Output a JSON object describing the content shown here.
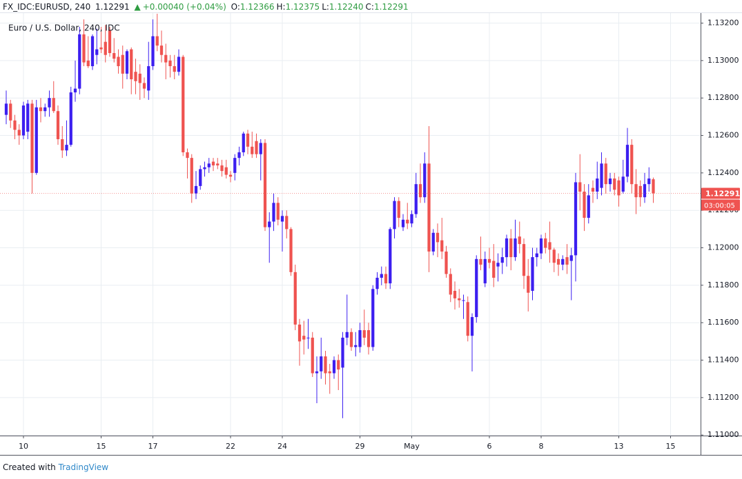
{
  "header": {
    "symbol": "FX_IDC:EURUSD, 240",
    "last": "1.12291",
    "change": "+0.00040 (+0.04%)",
    "fields": [
      {
        "label": "O:",
        "value": "1.12366"
      },
      {
        "label": "H:",
        "value": "1.12375"
      },
      {
        "label": "L:",
        "value": "1.12240"
      },
      {
        "label": "C:",
        "value": "1.12291"
      }
    ],
    "countdown": "03:00:05"
  },
  "footer": {
    "created": "Created with",
    "brand": "TradingView"
  },
  "chart_data": {
    "type": "candlestick",
    "title": "Euro / U.S. Dollar, 240, IDC",
    "up_color": "#3c1ff0",
    "down_color": "#ef5350",
    "grid": true,
    "xlim": [
      -1.44,
      160.96
    ],
    "xticks": [
      {
        "value": 4,
        "label": "10"
      },
      {
        "value": 22,
        "label": "15"
      },
      {
        "value": 34,
        "label": "17"
      },
      {
        "value": 52,
        "label": "22"
      },
      {
        "value": 64,
        "label": "24"
      },
      {
        "value": 82,
        "label": "29"
      },
      {
        "value": 94,
        "label": "May"
      },
      {
        "value": 112,
        "label": "6"
      },
      {
        "value": 124,
        "label": "8"
      },
      {
        "value": 142,
        "label": "13"
      },
      {
        "value": 154,
        "label": "15"
      }
    ],
    "ylim": [
      1.10997,
      1.13213
    ],
    "yticks": [
      {
        "value": 1.132,
        "label": "1.13200"
      },
      {
        "value": 1.13,
        "label": "1.13000"
      },
      {
        "value": 1.128,
        "label": "1.12800"
      },
      {
        "value": 1.126,
        "label": "1.12600"
      },
      {
        "value": 1.124,
        "label": "1.12400"
      },
      {
        "value": 1.122,
        "label": "1.12200"
      },
      {
        "value": 1.12,
        "label": "1.12000"
      },
      {
        "value": 1.118,
        "label": "1.11800"
      },
      {
        "value": 1.116,
        "label": "1.11600"
      },
      {
        "value": 1.114,
        "label": "1.11400"
      },
      {
        "value": 1.112,
        "label": "1.11200"
      },
      {
        "value": 1.11,
        "label": "1.11000"
      }
    ],
    "open": [
      1.1271,
      1.1277,
      1.1268,
      1.1263,
      1.126,
      1.1262,
      1.1277,
      1.124,
      1.1275,
      1.1273,
      1.1275,
      1.128,
      1.1273,
      1.1258,
      1.1252,
      1.1255,
      1.1283,
      1.1285,
      1.1314,
      1.13,
      1.1297,
      1.1303,
      1.1307,
      1.131,
      1.1316,
      1.1304,
      1.1302,
      1.1303,
      1.1293,
      1.1306,
      1.1294,
      1.1293,
      1.1288,
      1.1284,
      1.1297,
      1.1313,
      1.1308,
      1.1303,
      1.13,
      1.1297,
      1.1294,
      1.1302,
      1.1251,
      1.1248,
      1.1229,
      1.1233,
      1.1242,
      1.1243,
      1.1246,
      1.1245,
      1.1244,
      1.1243,
      1.1239,
      1.124,
      1.1248,
      1.1251,
      1.1261,
      1.1254,
      1.1257,
      1.125,
      1.1256,
      1.1211,
      1.1214,
      1.1224,
      1.1214,
      1.1217,
      1.121,
      1.1187,
      1.1159,
      1.1153,
      1.1152,
      1.1152,
      1.1133,
      1.1134,
      1.1142,
      1.1134,
      1.1133,
      1.114,
      1.1136,
      1.1152,
      1.1155,
      1.1147,
      1.1147,
      1.1156,
      1.1156,
      1.1147,
      1.1178,
      1.1184,
      1.1186,
      1.1181,
      1.121,
      1.1225,
      1.1211,
      1.1215,
      1.1213,
      1.1218,
      1.1234,
      1.1227,
      1.1245,
      1.1198,
      1.1208,
      1.1204,
      1.1198,
      1.1186,
      1.1177,
      1.1173,
      1.1172,
      1.1171,
      1.1153,
      1.1163,
      1.1194,
      1.1181,
      1.1194,
      1.1193,
      1.119,
      1.1192,
      1.1195,
      1.1205,
      1.1195,
      1.1206,
      1.1202,
      1.1185,
      1.1177,
      1.1195,
      1.1197,
      1.1205,
      1.1203,
      1.1199,
      1.1194,
      1.1191,
      1.1195,
      1.1193,
      1.1196,
      1.1235,
      1.123,
      1.1216,
      1.1232,
      1.123,
      1.1232,
      1.1245,
      1.1234,
      1.1237,
      1.1236,
      1.123,
      1.1238,
      1.1255,
      1.1234,
      1.1233,
      1.1227,
      1.1234,
      1.12366
    ],
    "high": [
      1.1284,
      1.1279,
      1.1271,
      1.1266,
      1.1278,
      1.1279,
      1.1279,
      1.1279,
      1.128,
      1.1277,
      1.1284,
      1.1289,
      1.1276,
      1.1265,
      1.1268,
      1.1286,
      1.13,
      1.1318,
      1.1322,
      1.1313,
      1.1314,
      1.1317,
      1.1318,
      1.1319,
      1.1318,
      1.1312,
      1.1306,
      1.1308,
      1.1306,
      1.1307,
      1.1301,
      1.1298,
      1.1291,
      1.131,
      1.1322,
      1.1325,
      1.1316,
      1.1309,
      1.1303,
      1.1303,
      1.1306,
      1.1303,
      1.1253,
      1.125,
      1.1241,
      1.1244,
      1.1246,
      1.1248,
      1.1248,
      1.1248,
      1.1247,
      1.1247,
      1.1241,
      1.125,
      1.1254,
      1.1262,
      1.1263,
      1.1262,
      1.1261,
      1.1258,
      1.1258,
      1.1219,
      1.1229,
      1.1227,
      1.122,
      1.122,
      1.1211,
      1.1191,
      1.1162,
      1.1161,
      1.1162,
      1.1155,
      1.1142,
      1.1152,
      1.1145,
      1.1138,
      1.1142,
      1.1143,
      1.1155,
      1.1175,
      1.1157,
      1.1155,
      1.116,
      1.1167,
      1.116,
      1.118,
      1.1187,
      1.119,
      1.119,
      1.1211,
      1.1227,
      1.1227,
      1.1218,
      1.1224,
      1.122,
      1.124,
      1.1245,
      1.1251,
      1.1265,
      1.121,
      1.1213,
      1.1216,
      1.1201,
      1.1189,
      1.1182,
      1.1178,
      1.1175,
      1.1174,
      1.1165,
      1.1196,
      1.1206,
      1.1198,
      1.12,
      1.1202,
      1.1197,
      1.12,
      1.1207,
      1.121,
      1.1215,
      1.1214,
      1.1205,
      1.1194,
      1.12,
      1.12,
      1.1207,
      1.1208,
      1.1214,
      1.12,
      1.1197,
      1.1196,
      1.1202,
      1.12,
      1.124,
      1.125,
      1.1234,
      1.1234,
      1.1236,
      1.1246,
      1.1251,
      1.1248,
      1.124,
      1.124,
      1.1238,
      1.1247,
      1.1264,
      1.1258,
      1.1242,
      1.1236,
      1.124,
      1.1243,
      1.12375
    ],
    "low": [
      1.1266,
      1.1264,
      1.1258,
      1.1255,
      1.1258,
      1.1258,
      1.1229,
      1.1239,
      1.1267,
      1.127,
      1.127,
      1.1272,
      1.1255,
      1.1248,
      1.1249,
      1.1254,
      1.1278,
      1.1282,
      1.1297,
      1.1296,
      1.1295,
      1.1298,
      1.1304,
      1.1299,
      1.1302,
      1.1299,
      1.1293,
      1.1285,
      1.129,
      1.1282,
      1.1282,
      1.1279,
      1.128,
      1.1279,
      1.1295,
      1.1305,
      1.1299,
      1.129,
      1.1291,
      1.129,
      1.1292,
      1.1249,
      1.1237,
      1.1224,
      1.1226,
      1.1231,
      1.1238,
      1.124,
      1.1241,
      1.1242,
      1.1238,
      1.1237,
      1.1235,
      1.1236,
      1.1244,
      1.1249,
      1.125,
      1.1248,
      1.1248,
      1.1236,
      1.1209,
      1.1192,
      1.1209,
      1.1212,
      1.1198,
      1.1205,
      1.1185,
      1.1156,
      1.1137,
      1.1143,
      1.1146,
      1.1131,
      1.1117,
      1.113,
      1.1127,
      1.1122,
      1.113,
      1.1124,
      1.1109,
      1.1148,
      1.1145,
      1.1142,
      1.1144,
      1.1148,
      1.1143,
      1.1145,
      1.1175,
      1.118,
      1.1178,
      1.1178,
      1.1205,
      1.1211,
      1.1209,
      1.121,
      1.1211,
      1.1216,
      1.1224,
      1.1224,
      1.1187,
      1.1196,
      1.1195,
      1.1194,
      1.1184,
      1.1171,
      1.1167,
      1.1168,
      1.1162,
      1.115,
      1.1134,
      1.116,
      1.1188,
      1.1179,
      1.1189,
      1.1179,
      1.1182,
      1.1186,
      1.119,
      1.1188,
      1.1193,
      1.1197,
      1.1178,
      1.1166,
      1.1172,
      1.119,
      1.1194,
      1.1197,
      1.1192,
      1.1187,
      1.1185,
      1.1188,
      1.1186,
      1.1172,
      1.1182,
      1.122,
      1.1209,
      1.1213,
      1.1224,
      1.1226,
      1.1228,
      1.1229,
      1.123,
      1.1228,
      1.1222,
      1.1229,
      1.1235,
      1.1229,
      1.1218,
      1.1222,
      1.1224,
      1.123,
      1.1224
    ],
    "close": [
      1.1277,
      1.1268,
      1.1263,
      1.126,
      1.1276,
      1.1277,
      1.124,
      1.1275,
      1.1273,
      1.1275,
      1.128,
      1.1273,
      1.1258,
      1.1252,
      1.1255,
      1.1283,
      1.1285,
      1.1314,
      1.1299,
      1.1297,
      1.1313,
      1.1306,
      1.1306,
      1.1303,
      1.1304,
      1.1301,
      1.1297,
      1.1293,
      1.1305,
      1.129,
      1.1289,
      1.1288,
      1.1285,
      1.1297,
      1.1313,
      1.1308,
      1.1303,
      1.1299,
      1.1297,
      1.1294,
      1.1302,
      1.1251,
      1.1248,
      1.1229,
      1.1233,
      1.1242,
      1.1243,
      1.1245,
      1.1244,
      1.1244,
      1.1241,
      1.1239,
      1.1238,
      1.1248,
      1.1251,
      1.1261,
      1.1254,
      1.125,
      1.125,
      1.1256,
      1.1211,
      1.1214,
      1.1224,
      1.1215,
      1.1217,
      1.121,
      1.1187,
      1.1159,
      1.115,
      1.1151,
      1.1152,
      1.1133,
      1.1134,
      1.1142,
      1.1133,
      1.1133,
      1.114,
      1.1135,
      1.1152,
      1.1155,
      1.1147,
      1.1148,
      1.1156,
      1.1152,
      1.1147,
      1.1178,
      1.1184,
      1.1186,
      1.1181,
      1.121,
      1.1225,
      1.1216,
      1.1215,
      1.1213,
      1.1218,
      1.1234,
      1.1227,
      1.1245,
      1.1198,
      1.1208,
      1.1203,
      1.1198,
      1.1186,
      1.1175,
      1.1173,
      1.1172,
      1.1172,
      1.1153,
      1.1163,
      1.1194,
      1.1191,
      1.1194,
      1.1192,
      1.1184,
      1.1192,
      1.1195,
      1.1205,
      1.1195,
      1.1205,
      1.1202,
      1.1185,
      1.1176,
      1.1195,
      1.1197,
      1.1205,
      1.12,
      1.1199,
      1.1192,
      1.1191,
      1.1194,
      1.1191,
      1.1196,
      1.1235,
      1.123,
      1.1216,
      1.1228,
      1.123,
      1.1237,
      1.1245,
      1.1234,
      1.1237,
      1.1231,
      1.1228,
      1.1238,
      1.1255,
      1.1234,
      1.1227,
      1.1227,
      1.1234,
      1.1237,
      1.12291
    ]
  }
}
